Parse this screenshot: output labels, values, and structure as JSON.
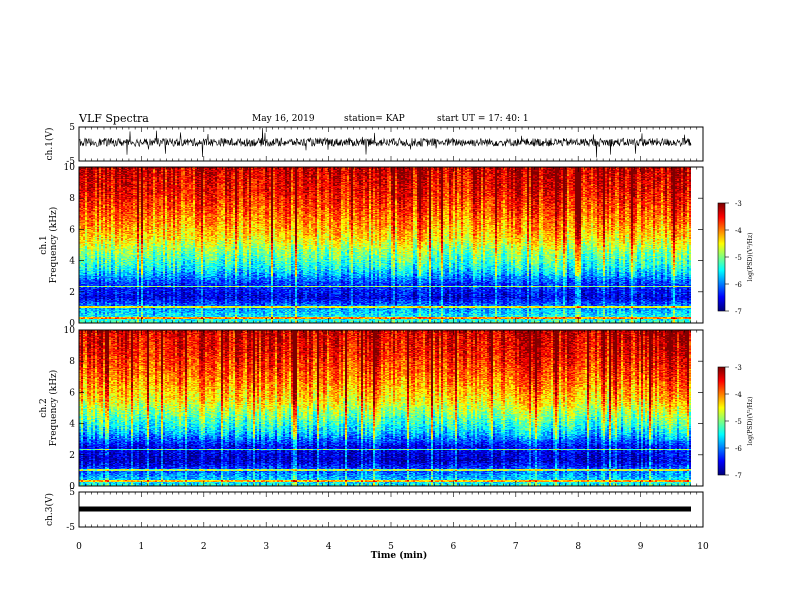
{
  "header": {
    "title": "VLF Spectra",
    "date": "May 16, 2019",
    "station": "station= KAP",
    "start_ut": "start  UT  =   17: 40: 1"
  },
  "chart_data": [
    {
      "type": "line",
      "panel": "ch1-waveform",
      "ylabel": "ch.1(V)",
      "ylim": [
        -5,
        5
      ],
      "yticks": [
        "5",
        "-5"
      ],
      "xlim": [
        0,
        10
      ],
      "series_color": "#000000",
      "description_values": {
        "baseline_level": 0,
        "noise_amplitude": 2.2
      }
    },
    {
      "type": "heatmap",
      "panel": "ch1-spectrogram",
      "ylabel": "ch.1\nFrequency  (kHz)",
      "ylim": [
        0,
        10
      ],
      "yticks": [
        "0",
        "2",
        "4",
        "6",
        "8",
        "10"
      ],
      "xlim": [
        0,
        9.83
      ],
      "colorbar": {
        "label": "log(PSD)(V²/Hz)",
        "range": [
          -7,
          -3
        ],
        "ticks": [
          "-3",
          "-4",
          "-5",
          "-6",
          "-7"
        ]
      },
      "profile": [
        {
          "freq_khz": 0.0,
          "log_psd": -5.3
        },
        {
          "freq_khz": 0.8,
          "log_psd": -5.8
        },
        {
          "freq_khz": 1.6,
          "log_psd": -6.6
        },
        {
          "freq_khz": 2.5,
          "log_psd": -6.3
        },
        {
          "freq_khz": 3.5,
          "log_psd": -5.5
        },
        {
          "freq_khz": 4.5,
          "log_psd": -5.0
        },
        {
          "freq_khz": 5.5,
          "log_psd": -4.4
        },
        {
          "freq_khz": 7.0,
          "log_psd": -3.9
        },
        {
          "freq_khz": 8.5,
          "log_psd": -3.5
        },
        {
          "freq_khz": 10.0,
          "log_psd": -3.3
        }
      ]
    },
    {
      "type": "heatmap",
      "panel": "ch2-spectrogram",
      "ylabel": "ch.2\nFrequency  (kHz)",
      "ylim": [
        0,
        10
      ],
      "yticks": [
        "0",
        "2",
        "4",
        "6",
        "8",
        "10"
      ],
      "xlim": [
        0,
        9.83
      ],
      "colorbar": {
        "label": "log(PSD)(V²/Hz)",
        "range": [
          -7,
          -3
        ],
        "ticks": [
          "-3",
          "-4",
          "-5",
          "-6",
          "-7"
        ]
      },
      "profile": [
        {
          "freq_khz": 0.0,
          "log_psd": -5.4
        },
        {
          "freq_khz": 0.8,
          "log_psd": -6.0
        },
        {
          "freq_khz": 1.6,
          "log_psd": -6.7
        },
        {
          "freq_khz": 2.5,
          "log_psd": -6.5
        },
        {
          "freq_khz": 3.5,
          "log_psd": -5.6
        },
        {
          "freq_khz": 4.5,
          "log_psd": -5.0
        },
        {
          "freq_khz": 5.5,
          "log_psd": -4.4
        },
        {
          "freq_khz": 7.0,
          "log_psd": -3.9
        },
        {
          "freq_khz": 8.5,
          "log_psd": -3.5
        },
        {
          "freq_khz": 10.0,
          "log_psd": -3.3
        }
      ]
    },
    {
      "type": "line",
      "panel": "ch3-waveform",
      "ylabel": "ch.3(V)",
      "ylim": [
        -5,
        5
      ],
      "yticks": [
        "5",
        "-5"
      ],
      "xlim": [
        0,
        10
      ],
      "xlabel": "Time  (min)",
      "xticks": [
        "0",
        "1",
        "2",
        "3",
        "4",
        "5",
        "6",
        "7",
        "8",
        "9",
        "10"
      ],
      "series_color": "#000000",
      "description_values": {
        "baseline_level": 0,
        "noise_amplitude": 0.3
      }
    }
  ]
}
